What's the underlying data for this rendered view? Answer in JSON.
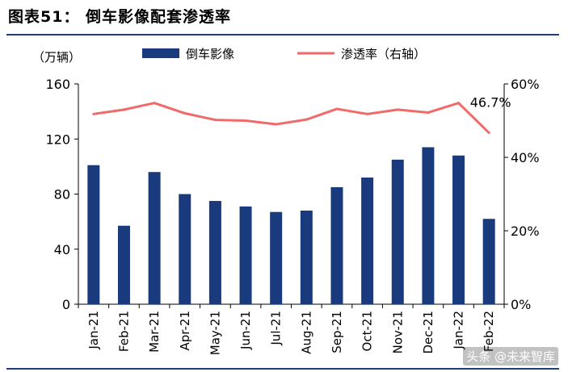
{
  "figure": {
    "title": "图表51： 倒车影像配套渗透率",
    "watermark": "头条 @未来智库"
  },
  "chart_data": {
    "type": "bar",
    "title": "",
    "categories": [
      "Jan-21",
      "Feb-21",
      "Mar-21",
      "Apr-21",
      "May-21",
      "Jun-21",
      "Jul-21",
      "Aug-21",
      "Sep-21",
      "Oct-21",
      "Nov-21",
      "Dec-21",
      "Jan-22",
      "Feb-22"
    ],
    "left_axis": {
      "unit_label": "（万辆）",
      "ylim": [
        0,
        160
      ],
      "ticks": [
        0,
        40,
        80,
        120,
        160
      ]
    },
    "right_axis": {
      "ylim": [
        0,
        60
      ],
      "ticks": [
        0,
        20,
        40,
        60
      ],
      "tick_labels": [
        "0%",
        "20%",
        "40%",
        "60%"
      ]
    },
    "series": [
      {
        "name": "倒车影像",
        "type": "bar",
        "axis": "left",
        "color": "#1a3a7e",
        "values": [
          101,
          57,
          96,
          80,
          75,
          71,
          67,
          68,
          85,
          92,
          105,
          114,
          108,
          62
        ]
      },
      {
        "name": "渗透率（右轴）",
        "type": "line",
        "axis": "right",
        "color": "#f06a6a",
        "values": [
          51.8,
          53.0,
          54.8,
          52.0,
          50.2,
          50.0,
          49.0,
          50.3,
          53.2,
          51.8,
          53.0,
          52.2,
          54.8,
          46.7
        ]
      }
    ],
    "annotations": [
      {
        "series": 1,
        "index": 13,
        "text": "46.7%"
      }
    ],
    "grid": false,
    "legend_position": "top"
  }
}
